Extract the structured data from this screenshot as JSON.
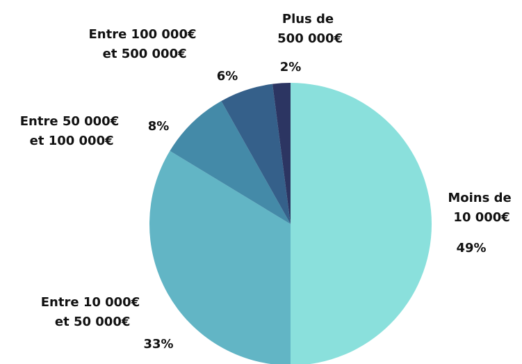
{
  "chart_data": {
    "type": "pie",
    "categories": [
      "Moins de 10 000€",
      "Entre 10 000€ et 50 000€",
      "Entre 50 000€ et 100 000€",
      "Entre 100 000€ et 500 000€",
      "Plus de 500 000€"
    ],
    "values": [
      49,
      33,
      8,
      6,
      2
    ],
    "value_labels": [
      "49%",
      "33%",
      "8%",
      "6%",
      "2%"
    ],
    "colors": [
      "#8ae0dc",
      "#62b5c5",
      "#448aa8",
      "#35608a",
      "#2c3562"
    ]
  }
}
